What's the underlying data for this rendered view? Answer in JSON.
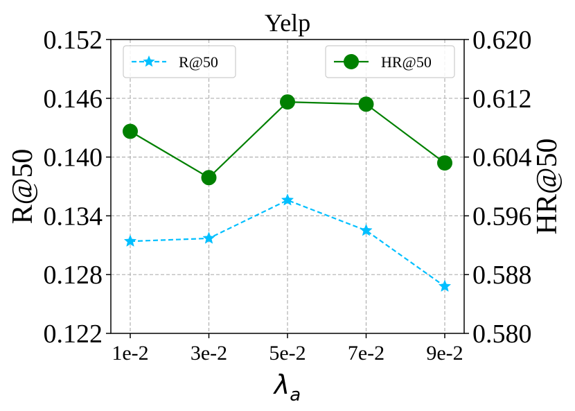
{
  "chart_data": {
    "type": "line",
    "title": "Yelp",
    "xlabel": "λ",
    "xlabel_subscript": "a",
    "categories": [
      "1e-2",
      "3e-2",
      "5e-2",
      "7e-2",
      "9e-2"
    ],
    "left_axis": {
      "label": "R@50",
      "ylim": [
        0.122,
        0.152
      ],
      "ticks": [
        "0.122",
        "0.128",
        "0.134",
        "0.140",
        "0.146",
        "0.152"
      ]
    },
    "right_axis": {
      "label": "HR@50",
      "ylim": [
        0.58,
        0.62
      ],
      "ticks": [
        "0.580",
        "0.588",
        "0.596",
        "0.604",
        "0.612",
        "0.620"
      ]
    },
    "series": [
      {
        "name": "R@50",
        "axis": "left",
        "color": "#00bfff",
        "line_style": "dashed",
        "marker": "star",
        "values": [
          0.1314,
          0.1317,
          0.1356,
          0.1325,
          0.1268
        ]
      },
      {
        "name": "HR@50",
        "axis": "right",
        "color": "#008000",
        "line_style": "solid",
        "marker": "circle",
        "values": [
          0.6075,
          0.6012,
          0.6115,
          0.6112,
          0.6032
        ]
      }
    ],
    "grid": true,
    "legend": [
      "top-left",
      "top-right"
    ]
  }
}
